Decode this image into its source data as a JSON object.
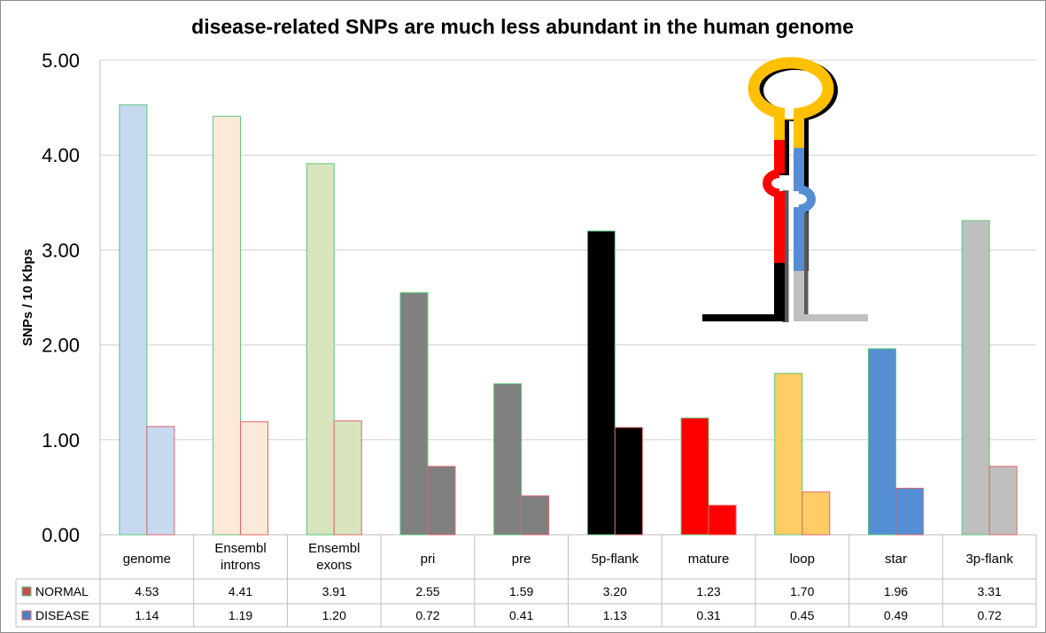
{
  "chart_data": {
    "type": "bar",
    "title": "disease-related SNPs are much less abundant in the human genome",
    "xlabel": "",
    "ylabel": "SNPs / 10 Kbps",
    "ylim": [
      0,
      5
    ],
    "yticks": [
      "0.00",
      "1.00",
      "2.00",
      "3.00",
      "4.00",
      "5.00"
    ],
    "grid": true,
    "legend_placement": "data-table-bottom-left",
    "categories": [
      [
        "genome"
      ],
      [
        "Ensembl",
        "introns"
      ],
      [
        "Ensembl",
        "exons"
      ],
      [
        "pri"
      ],
      [
        "pre"
      ],
      [
        "5p-flank"
      ],
      [
        "mature"
      ],
      [
        "loop"
      ],
      [
        "star"
      ],
      [
        "3p-flank"
      ]
    ],
    "category_colors": [
      "#c6d9f1",
      "#fde9d9",
      "#d7e4bd",
      "#808080",
      "#808080",
      "#000000",
      "#ff0000",
      "#ffcc66",
      "#558ed5",
      "#bfbfbf"
    ],
    "series": [
      {
        "name": "NORMAL",
        "key_fill": "#c0504d",
        "key_border": "#5cc77a",
        "bar_border": "#5cc77a",
        "values": [
          4.53,
          4.41,
          3.91,
          2.55,
          1.59,
          3.2,
          1.23,
          1.7,
          1.96,
          3.31
        ],
        "labels": [
          "4.53",
          "4.41",
          "3.91",
          "2.55",
          "1.59",
          "3.20",
          "1.23",
          "1.70",
          "1.96",
          "3.31"
        ]
      },
      {
        "name": "DISEASE",
        "key_fill": "#4f81bd",
        "key_border": "#e06666",
        "bar_border": "#e06666",
        "values": [
          1.14,
          1.19,
          1.2,
          0.72,
          0.41,
          1.13,
          0.31,
          0.45,
          0.49,
          0.72
        ],
        "labels": [
          "1.14",
          "1.19",
          "1.20",
          "0.72",
          "0.41",
          "1.13",
          "0.31",
          "0.45",
          "0.49",
          "0.72"
        ]
      }
    ],
    "inset": {
      "type": "miRNA-hairpin-diagram",
      "segment_colors": {
        "5p-flank": "#000000",
        "mature": "#ff0000",
        "loop": "#ffc000",
        "star": "#558ed5",
        "3p-flank": "#bfbfbf"
      }
    }
  }
}
